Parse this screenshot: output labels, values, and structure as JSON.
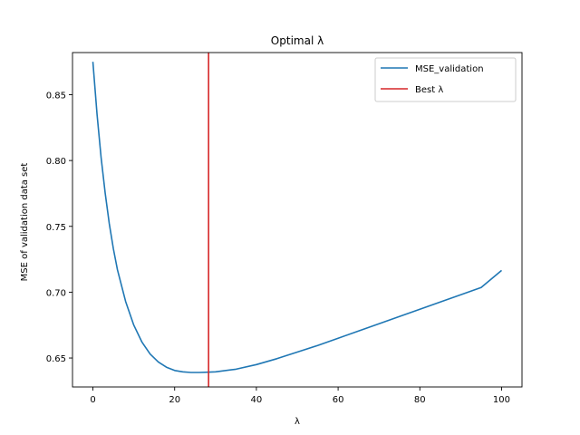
{
  "chart_data": {
    "type": "line",
    "title": "Optimal λ",
    "xlabel": "λ",
    "ylabel": "MSE of validation data set",
    "xlim": [
      -5,
      105
    ],
    "ylim": [
      0.628,
      0.882
    ],
    "x_ticks": [
      0,
      20,
      40,
      60,
      80,
      100
    ],
    "y_ticks": [
      0.65,
      0.7,
      0.75,
      0.8,
      0.85
    ],
    "x_tick_labels": [
      "0",
      "20",
      "40",
      "60",
      "80",
      "100"
    ],
    "y_tick_labels": [
      "0.65",
      "0.70",
      "0.75",
      "0.80",
      "0.85"
    ],
    "grid": false,
    "legend_position": "top-right",
    "series": [
      {
        "name": "MSE_validation",
        "color": "#1f77b4",
        "x": [
          0,
          1,
          2,
          3,
          4,
          5,
          6,
          8,
          10,
          12,
          14,
          16,
          18,
          20,
          22,
          24,
          26,
          28,
          30,
          35,
          40,
          45,
          50,
          55,
          60,
          65,
          70,
          75,
          80,
          85,
          90,
          95,
          100
        ],
        "y": [
          0.875,
          0.835,
          0.802,
          0.775,
          0.752,
          0.733,
          0.717,
          0.693,
          0.675,
          0.662,
          0.653,
          0.647,
          0.643,
          0.6405,
          0.6395,
          0.639,
          0.639,
          0.6392,
          0.6395,
          0.6415,
          0.645,
          0.6495,
          0.6545,
          0.6595,
          0.665,
          0.6705,
          0.676,
          0.6815,
          0.687,
          0.6925,
          0.698,
          0.7035,
          0.7165
        ]
      }
    ],
    "best_lambda": {
      "name": "Best λ",
      "x": 28.3,
      "color": "#d62728"
    }
  }
}
